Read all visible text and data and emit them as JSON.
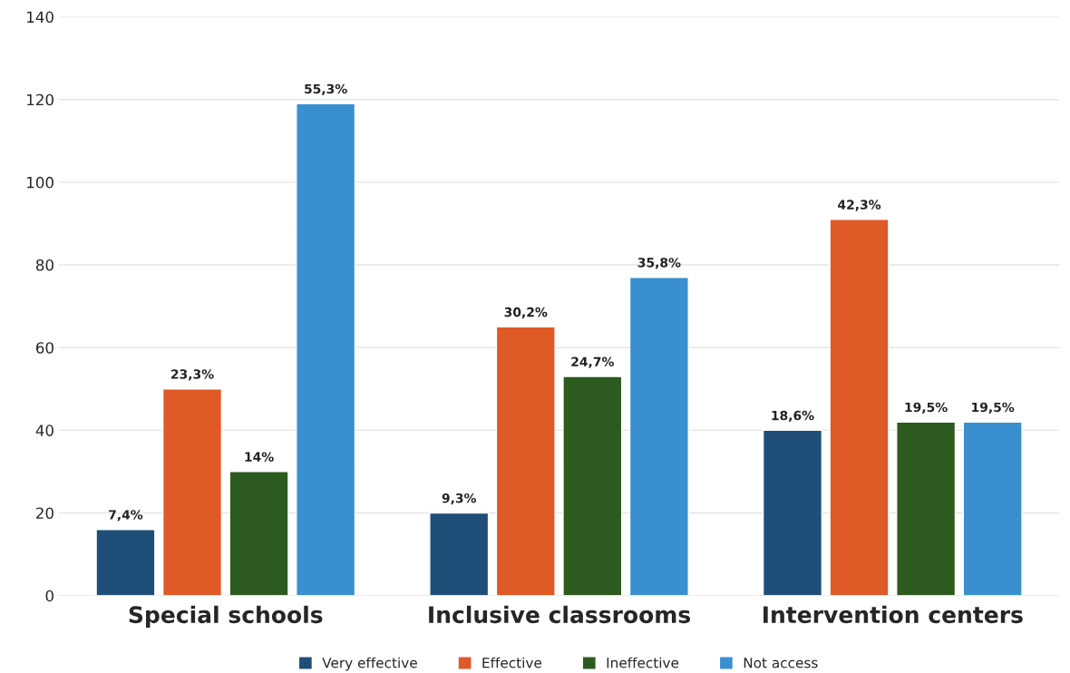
{
  "chart_data": {
    "type": "bar",
    "categories": [
      "Special schools",
      "Inclusive classrooms",
      "Intervention centers"
    ],
    "series": [
      {
        "name": "Very effective",
        "color": "#1f4e79",
        "values": [
          16,
          20,
          40
        ]
      },
      {
        "name": "Effective",
        "color": "#e05a28",
        "values": [
          50,
          65,
          91
        ]
      },
      {
        "name": "Ineffective",
        "color": "#2d5a1f",
        "values": [
          30,
          53,
          42
        ]
      },
      {
        "name": "Not access",
        "color": "#3a8fd0",
        "values": [
          119,
          77,
          42
        ]
      }
    ],
    "annotations": [
      "7,4%",
      "23,3%",
      "14%",
      "55,3%",
      "9,3%",
      "30,2%",
      "24,7%",
      "35,8%",
      "18,6%",
      "42,3%",
      "19,5%",
      "19,5%"
    ],
    "ylim": [
      0,
      140
    ],
    "yticks": [
      0,
      20,
      40,
      60,
      80,
      100,
      120,
      140
    ],
    "grid": "y",
    "legend": "bottom"
  }
}
